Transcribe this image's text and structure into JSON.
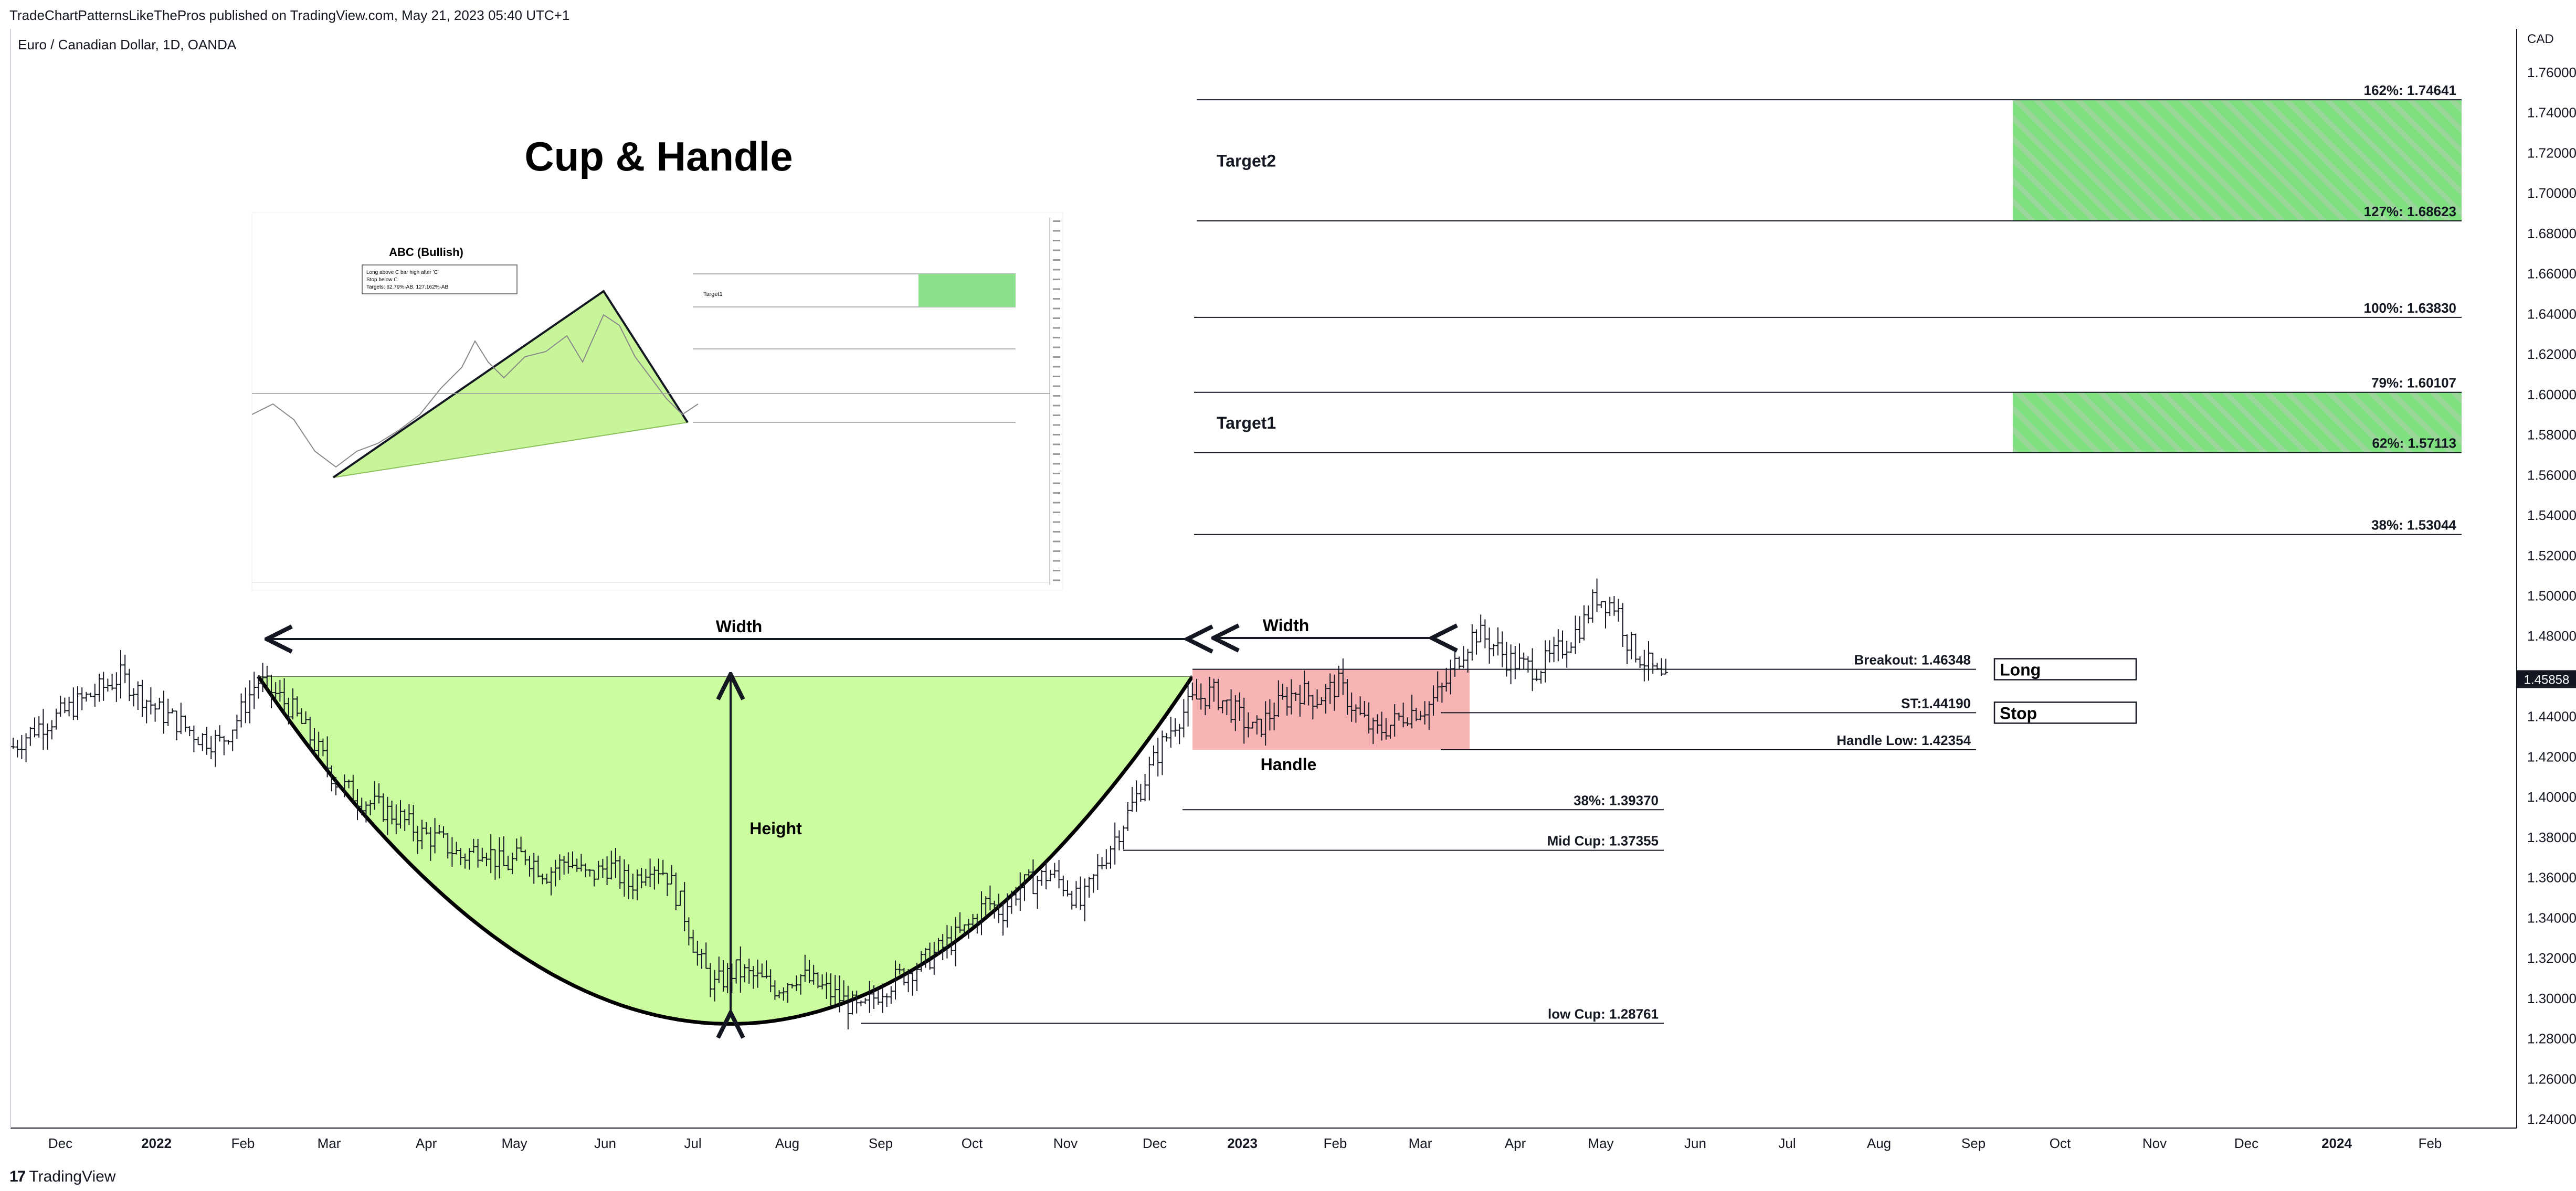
{
  "header": {
    "published": "TradeChartPatternsLikeThePros published on TradingView.com, May 21, 2023 05:40 UTC+1",
    "symbol": "Euro / Canadian Dollar, 1D, OANDA"
  },
  "footer": {
    "logo_text": "17",
    "brand": "TradingView"
  },
  "chart_data": {
    "type": "ohlc",
    "title": "Cup & Handle",
    "currency": "CAD",
    "ylim": [
      1.23,
      1.775
    ],
    "x_ticks": [
      {
        "label": "Dec",
        "x": 115
      },
      {
        "label": "2022",
        "x": 298,
        "bold": true
      },
      {
        "label": "Feb",
        "x": 463
      },
      {
        "label": "Mar",
        "x": 627
      },
      {
        "label": "Apr",
        "x": 812
      },
      {
        "label": "May",
        "x": 980
      },
      {
        "label": "Jun",
        "x": 1153
      },
      {
        "label": "Jul",
        "x": 1320
      },
      {
        "label": "Aug",
        "x": 1500
      },
      {
        "label": "Sep",
        "x": 1678
      },
      {
        "label": "Oct",
        "x": 1852
      },
      {
        "label": "Nov",
        "x": 2030
      },
      {
        "label": "Dec",
        "x": 2200
      },
      {
        "label": "2023",
        "x": 2367,
        "bold": true
      },
      {
        "label": "Feb",
        "x": 2544
      },
      {
        "label": "Mar",
        "x": 2706
      },
      {
        "label": "Apr",
        "x": 2887
      },
      {
        "label": "May",
        "x": 3050
      },
      {
        "label": "Jun",
        "x": 3230
      },
      {
        "label": "Jul",
        "x": 3405
      },
      {
        "label": "Aug",
        "x": 3580
      },
      {
        "label": "Sep",
        "x": 3760
      },
      {
        "label": "Oct",
        "x": 3925
      },
      {
        "label": "Nov",
        "x": 4105
      },
      {
        "label": "Dec",
        "x": 4280
      },
      {
        "label": "2024",
        "x": 4452,
        "bold": true
      },
      {
        "label": "Feb",
        "x": 4630
      }
    ],
    "y_ticks": [
      "1.76000",
      "1.74000",
      "1.72000",
      "1.70000",
      "1.68000",
      "1.66000",
      "1.64000",
      "1.62000",
      "1.60000",
      "1.58000",
      "1.56000",
      "1.54000",
      "1.52000",
      "1.50000",
      "1.48000",
      "1.46000",
      "1.44000",
      "1.42000",
      "1.40000",
      "1.38000",
      "1.36000",
      "1.34000",
      "1.32000",
      "1.30000",
      "1.28000",
      "1.26000",
      "1.24000"
    ],
    "last_price": 1.45858,
    "last_price_label": "1.45858",
    "price_path": [
      [
        25,
        1.425
      ],
      [
        70,
        1.435
      ],
      [
        110,
        1.44
      ],
      [
        150,
        1.447
      ],
      [
        200,
        1.455
      ],
      [
        230,
        1.46
      ],
      [
        265,
        1.452
      ],
      [
        300,
        1.443
      ],
      [
        340,
        1.437
      ],
      [
        380,
        1.43
      ],
      [
        420,
        1.427
      ],
      [
        455,
        1.44
      ],
      [
        490,
        1.458
      ],
      [
        520,
        1.452
      ],
      [
        555,
        1.444
      ],
      [
        600,
        1.426
      ],
      [
        640,
        1.408
      ],
      [
        680,
        1.4
      ],
      [
        720,
        1.395
      ],
      [
        760,
        1.39
      ],
      [
        800,
        1.382
      ],
      [
        840,
        1.378
      ],
      [
        880,
        1.37
      ],
      [
        920,
        1.376
      ],
      [
        960,
        1.365
      ],
      [
        1000,
        1.372
      ],
      [
        1040,
        1.362
      ],
      [
        1080,
        1.369
      ],
      [
        1120,
        1.36
      ],
      [
        1160,
        1.366
      ],
      [
        1200,
        1.356
      ],
      [
        1240,
        1.368
      ],
      [
        1270,
        1.362
      ],
      [
        1300,
        1.345
      ],
      [
        1330,
        1.32
      ],
      [
        1360,
        1.306
      ],
      [
        1400,
        1.314
      ],
      [
        1440,
        1.31
      ],
      [
        1480,
        1.305
      ],
      [
        1520,
        1.312
      ],
      [
        1560,
        1.306
      ],
      [
        1600,
        1.3
      ],
      [
        1640,
        1.293
      ],
      [
        1680,
        1.305
      ],
      [
        1720,
        1.312
      ],
      [
        1760,
        1.318
      ],
      [
        1800,
        1.326
      ],
      [
        1840,
        1.334
      ],
      [
        1880,
        1.348
      ],
      [
        1910,
        1.343
      ],
      [
        1940,
        1.355
      ],
      [
        1970,
        1.358
      ],
      [
        2000,
        1.362
      ],
      [
        2030,
        1.356
      ],
      [
        2060,
        1.346
      ],
      [
        2090,
        1.363
      ],
      [
        2120,
        1.378
      ],
      [
        2150,
        1.392
      ],
      [
        2180,
        1.408
      ],
      [
        2210,
        1.424
      ],
      [
        2240,
        1.438
      ],
      [
        2275,
        1.448
      ],
      [
        2310,
        1.452
      ],
      [
        2350,
        1.443
      ],
      [
        2390,
        1.432
      ],
      [
        2430,
        1.444
      ],
      [
        2470,
        1.453
      ],
      [
        2510,
        1.449
      ],
      [
        2550,
        1.456
      ],
      [
        2590,
        1.44
      ],
      [
        2620,
        1.432
      ],
      [
        2650,
        1.436
      ],
      [
        2680,
        1.442
      ],
      [
        2720,
        1.445
      ],
      [
        2750,
        1.454
      ],
      [
        2780,
        1.47
      ],
      [
        2810,
        1.482
      ],
      [
        2840,
        1.477
      ],
      [
        2870,
        1.469
      ],
      [
        2900,
        1.465
      ],
      [
        2930,
        1.464
      ],
      [
        2960,
        1.47
      ],
      [
        2990,
        1.478
      ],
      [
        3020,
        1.488
      ],
      [
        3040,
        1.5
      ],
      [
        3060,
        1.497
      ],
      [
        3080,
        1.495
      ],
      [
        3100,
        1.478
      ],
      [
        3120,
        1.471
      ],
      [
        3140,
        1.466
      ],
      [
        3160,
        1.459
      ],
      [
        3175,
        1.456
      ]
    ],
    "cup_handle": {
      "cup_top_left": {
        "x": 492,
        "y": 1.46
      },
      "cup_bottom": {
        "x": 1392,
        "y": 1.2873
      },
      "cup_top_right": {
        "x": 2272,
        "y": 1.46
      },
      "width_label": "Width",
      "handle_width_label": "Width",
      "height_label": "Height",
      "handle_label": "Handle",
      "handle_box": {
        "x1": 2272,
        "x2": 2800,
        "y_top": 1.4635,
        "y_bottom": 1.4235
      }
    },
    "levels": [
      {
        "label": "Breakout: 1.46348",
        "value": 1.46348,
        "x1": 2272,
        "x2": 3765
      },
      {
        "label": "ST:1.44190",
        "value": 1.4419,
        "x1": 2745,
        "x2": 3765
      },
      {
        "label": "Handle Low: 1.42354",
        "value": 1.42354,
        "x1": 2745,
        "x2": 3765
      },
      {
        "label": "38%: 1.39370",
        "value": 1.3937,
        "x1": 2253,
        "x2": 3170
      },
      {
        "label": "Mid Cup: 1.37355",
        "value": 1.37355,
        "x1": 2140,
        "x2": 3170
      },
      {
        "label": "low Cup: 1.28761",
        "value": 1.28761,
        "x1": 1640,
        "x2": 3170
      },
      {
        "label": "38%: 1.53044",
        "value": 1.53044,
        "x1": 2275,
        "x2": 4690
      },
      {
        "label": "62%: 1.57113",
        "value": 1.57113,
        "x1": 2275,
        "x2": 4690
      },
      {
        "label": "79%: 1.60107",
        "value": 1.60107,
        "x1": 2275,
        "x2": 4690
      },
      {
        "label": "100%: 1.63830",
        "value": 1.6383,
        "x1": 2275,
        "x2": 4690
      },
      {
        "label": "127%: 1.68623",
        "value": 1.68623,
        "x1": 2280,
        "x2": 4690
      },
      {
        "label": "162%: 1.74641",
        "value": 1.74641,
        "x1": 2280,
        "x2": 4690
      }
    ],
    "targets": [
      {
        "label": "Target1",
        "top": 1.60107,
        "bottom": 1.57113,
        "zone_x1": 3835,
        "zone_x2": 4690
      },
      {
        "label": "Target2",
        "top": 1.74641,
        "bottom": 1.68623,
        "zone_x1": 3835,
        "zone_x2": 4690
      }
    ],
    "boxes": [
      {
        "label": "Long",
        "value": 1.4635
      },
      {
        "label": "Stop",
        "value": 1.4419
      }
    ],
    "inset": {
      "title": "ABC (Bullish)",
      "note_lines": [
        "Long above C bar high after 'C'",
        "Stop below C",
        "Targets: 62.79%-AB, 127.162%-AB"
      ],
      "target_label": "Target1"
    }
  }
}
